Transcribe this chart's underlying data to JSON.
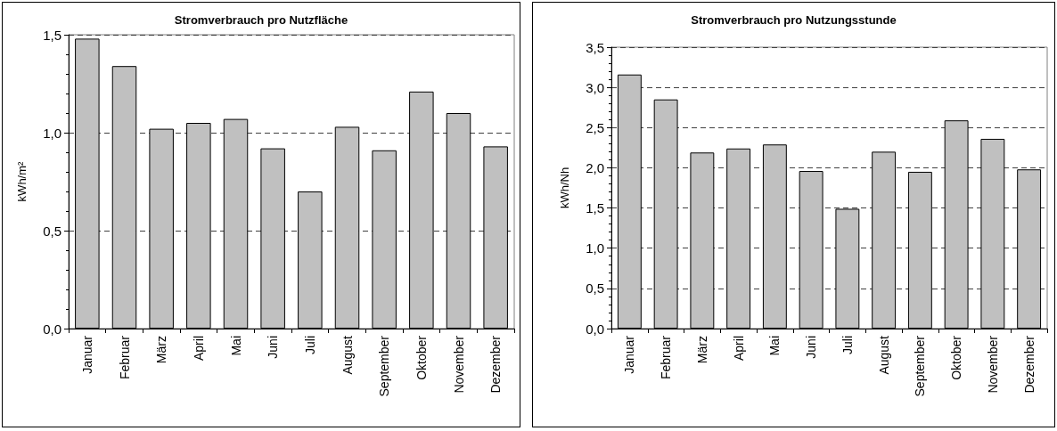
{
  "chart_data": [
    {
      "type": "bar",
      "title": "Stromverbrauch pro Nutzfläche",
      "ylabel": "kWh/m²",
      "categories": [
        "Januar",
        "Februar",
        "März",
        "April",
        "Mai",
        "Juni",
        "Juli",
        "August",
        "September",
        "Oktober",
        "November",
        "Dezember"
      ],
      "values": [
        1.48,
        1.34,
        1.02,
        1.05,
        1.07,
        0.92,
        0.7,
        1.03,
        0.91,
        1.21,
        1.1,
        0.93
      ],
      "color": "#c0c0c0",
      "ylim": [
        0,
        1.5
      ],
      "yticks": [
        {
          "value": 0,
          "label": "0,0"
        },
        {
          "value": 0.5,
          "label": "0,5"
        },
        {
          "value": 1,
          "label": "1,0"
        },
        {
          "value": 1.5,
          "label": "1,5"
        }
      ],
      "grid": "y"
    },
    {
      "type": "bar",
      "title": "Stromverbrauch pro Nutzungsstunde",
      "ylabel": "kWh/Nh",
      "categories": [
        "Januar",
        "Februar",
        "März",
        "April",
        "Mai",
        "Juni",
        "Juli",
        "August",
        "September",
        "Oktober",
        "November",
        "Dezember"
      ],
      "values": [
        3.16,
        2.85,
        2.19,
        2.24,
        2.29,
        1.96,
        1.49,
        2.2,
        1.95,
        2.59,
        2.36,
        1.98
      ],
      "color": "#c0c0c0",
      "ylim": [
        0,
        3.5
      ],
      "yticks": [
        {
          "value": 0,
          "label": "0,0"
        },
        {
          "value": 0.5,
          "label": "0,5"
        },
        {
          "value": 1,
          "label": "1,0"
        },
        {
          "value": 1.5,
          "label": "1,5"
        },
        {
          "value": 2,
          "label": "2,0"
        },
        {
          "value": 2.5,
          "label": "2,5"
        },
        {
          "value": 3,
          "label": "3,0"
        },
        {
          "value": 3.5,
          "label": "3,5"
        }
      ],
      "grid": "y"
    }
  ]
}
